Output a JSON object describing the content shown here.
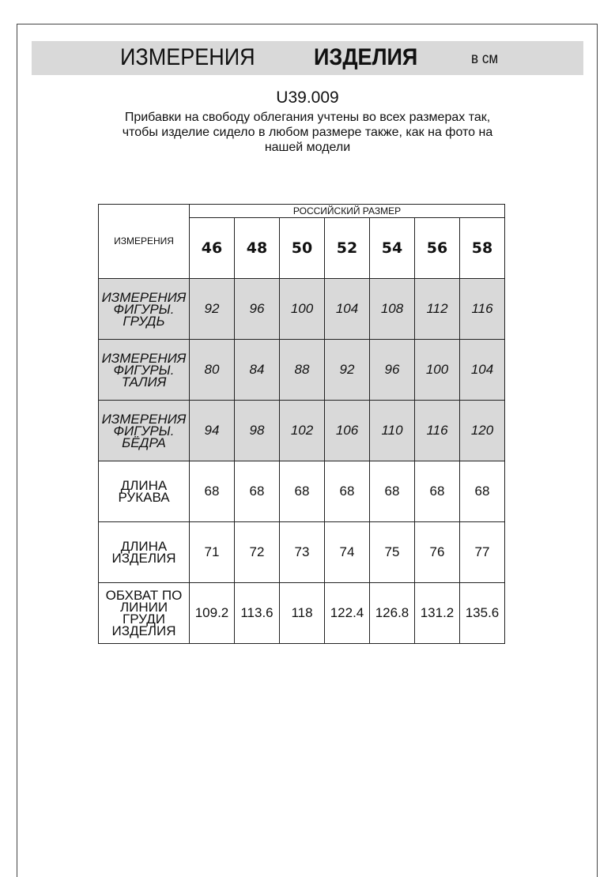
{
  "header": {
    "title_regular": "ИЗМЕРЕНИЯ",
    "title_bold": "ИЗДЕЛИЯ",
    "unit": "в см"
  },
  "article": "U39.009",
  "note_lines": [
    "Прибавки на свободу облегания учтены во всех размерах так,",
    "чтобы изделие сидело в любом размере также, как на фото на",
    "нашей модели"
  ],
  "table": {
    "corner": "ИЗМЕРЕНИЯ",
    "group_header": "РОССИЙСКИЙ РАЗМЕР",
    "sizes": [
      "46",
      "48",
      "50",
      "52",
      "54",
      "56",
      "58"
    ],
    "rows": [
      {
        "label": [
          "ИЗМЕРЕНИЯ",
          "ФИГУРЫ. ГРУДЬ"
        ],
        "shaded": true,
        "values": [
          "92",
          "96",
          "100",
          "104",
          "108",
          "112",
          "116"
        ]
      },
      {
        "label": [
          "ИЗМЕРЕНИЯ",
          "ФИГУРЫ. ТАЛИЯ"
        ],
        "shaded": true,
        "values": [
          "80",
          "84",
          "88",
          "92",
          "96",
          "100",
          "104"
        ]
      },
      {
        "label": [
          "ИЗМЕРЕНИЯ",
          "ФИГУРЫ. БЁДРА"
        ],
        "shaded": true,
        "values": [
          "94",
          "98",
          "102",
          "106",
          "110",
          "116",
          "120"
        ]
      },
      {
        "label": [
          "ДЛИНА РУКАВА"
        ],
        "shaded": false,
        "values": [
          "68",
          "68",
          "68",
          "68",
          "68",
          "68",
          "68"
        ]
      },
      {
        "label": [
          "ДЛИНА ИЗДЕЛИЯ"
        ],
        "shaded": false,
        "values": [
          "71",
          "72",
          "73",
          "74",
          "75",
          "76",
          "77"
        ]
      },
      {
        "label": [
          "ОБХВАТ ПО",
          "ЛИНИИ ГРУДИ",
          "ИЗДЕЛИЯ"
        ],
        "shaded": false,
        "values": [
          "109.2",
          "113.6",
          "118",
          "122.4",
          "126.8",
          "131.2",
          "135.6"
        ]
      }
    ]
  },
  "colors": {
    "shade": "#d9d9d9",
    "border": "#222222"
  }
}
